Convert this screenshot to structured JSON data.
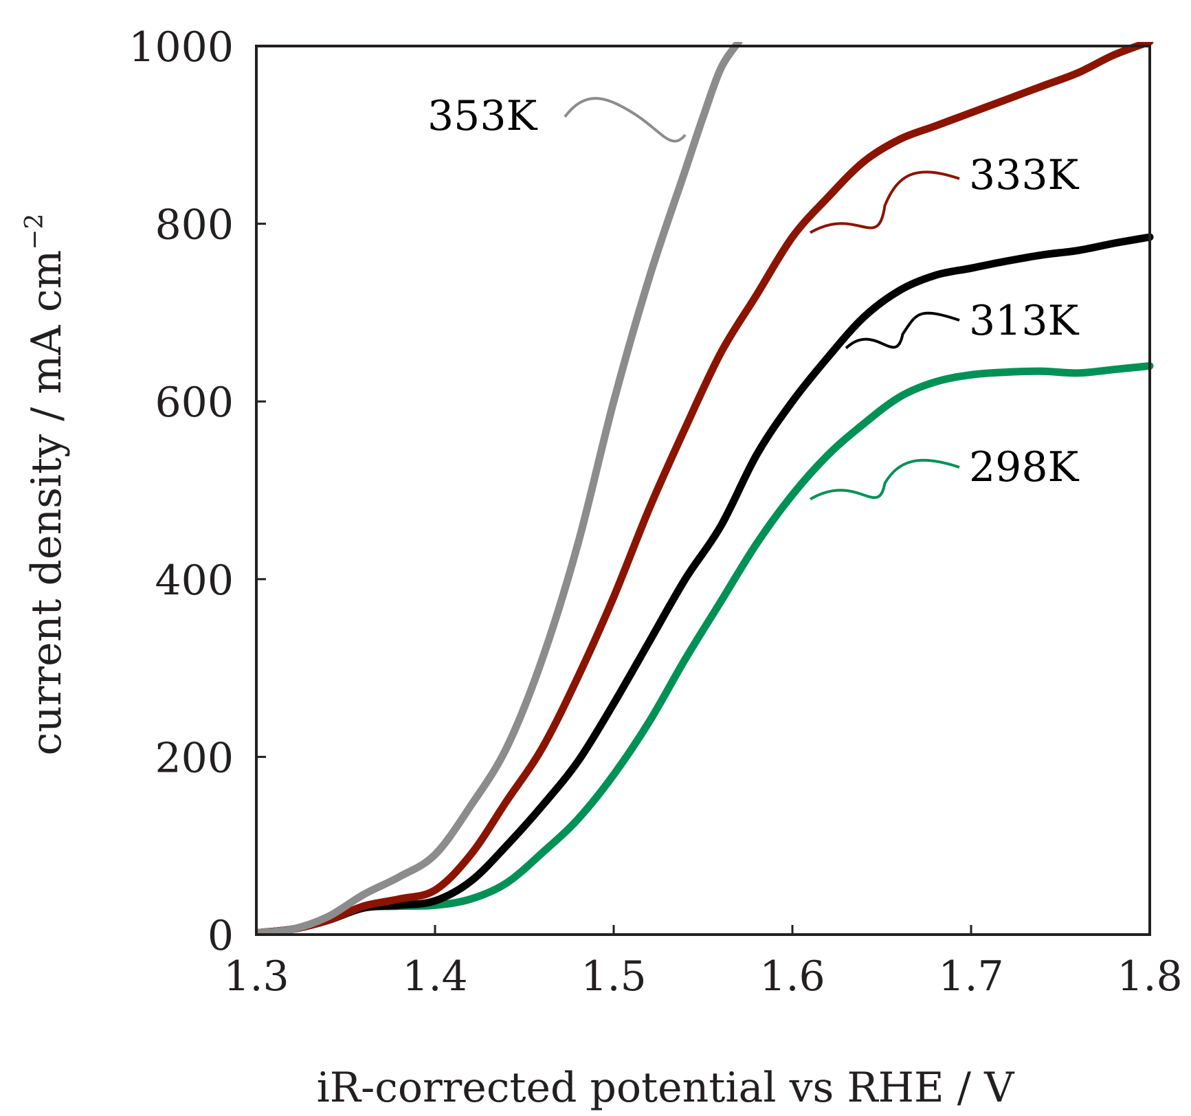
{
  "chart_data": {
    "type": "line",
    "title": "",
    "xlabel": "iR-corrected potential vs RHE / V",
    "ylabel_main": "current density / mA cm",
    "ylabel_sup": "−2",
    "xlim": [
      1.3,
      1.8
    ],
    "ylim": [
      0,
      1000
    ],
    "xticks": [
      1.3,
      1.4,
      1.5,
      1.6,
      1.7,
      1.8
    ],
    "xtick_labels": [
      "1.3",
      "1.4",
      "1.5",
      "1.6",
      "1.7",
      "1.8"
    ],
    "yticks": [
      0,
      200,
      400,
      600,
      800,
      1000
    ],
    "ytick_labels": [
      "0",
      "200",
      "400",
      "600",
      "800",
      "1000"
    ],
    "grid": false,
    "series": [
      {
        "name": "298K",
        "color": "#009156",
        "x": [
          1.3,
          1.32,
          1.34,
          1.36,
          1.38,
          1.4,
          1.42,
          1.44,
          1.46,
          1.48,
          1.5,
          1.52,
          1.54,
          1.56,
          1.58,
          1.6,
          1.62,
          1.64,
          1.66,
          1.68,
          1.7,
          1.72,
          1.74,
          1.76,
          1.78,
          1.8
        ],
        "values": [
          2,
          6,
          16,
          30,
          32,
          33,
          40,
          58,
          92,
          130,
          180,
          240,
          310,
          375,
          440,
          495,
          540,
          575,
          605,
          622,
          630,
          633,
          634,
          632,
          636,
          640
        ]
      },
      {
        "name": "313K",
        "color": "#000000",
        "x": [
          1.3,
          1.32,
          1.34,
          1.36,
          1.38,
          1.4,
          1.42,
          1.44,
          1.46,
          1.48,
          1.5,
          1.52,
          1.54,
          1.56,
          1.58,
          1.6,
          1.62,
          1.64,
          1.66,
          1.68,
          1.7,
          1.72,
          1.74,
          1.76,
          1.78,
          1.8
        ],
        "values": [
          2,
          6,
          16,
          30,
          33,
          38,
          60,
          100,
          145,
          195,
          260,
          330,
          400,
          460,
          540,
          600,
          650,
          695,
          725,
          742,
          750,
          758,
          765,
          770,
          778,
          785
        ]
      },
      {
        "name": "333K",
        "color": "#8b1400",
        "x": [
          1.3,
          1.32,
          1.34,
          1.36,
          1.38,
          1.4,
          1.42,
          1.44,
          1.46,
          1.48,
          1.5,
          1.52,
          1.54,
          1.56,
          1.58,
          1.6,
          1.62,
          1.64,
          1.66,
          1.68,
          1.7,
          1.72,
          1.74,
          1.76,
          1.78,
          1.8
        ],
        "values": [
          2,
          6,
          16,
          32,
          40,
          50,
          90,
          150,
          210,
          290,
          380,
          480,
          570,
          655,
          720,
          785,
          830,
          870,
          895,
          910,
          925,
          940,
          955,
          970,
          990,
          1005
        ]
      },
      {
        "name": "353K",
        "color": "#8c8c8c",
        "x": [
          1.3,
          1.32,
          1.34,
          1.36,
          1.38,
          1.4,
          1.42,
          1.44,
          1.46,
          1.48,
          1.5,
          1.52,
          1.54,
          1.55,
          1.56,
          1.57
        ],
        "values": [
          2,
          6,
          20,
          45,
          65,
          90,
          145,
          210,
          310,
          440,
          600,
          740,
          860,
          920,
          975,
          1005
        ]
      }
    ],
    "annotations": [
      {
        "text": "353K",
        "series": "353K",
        "x": 1.54,
        "y": 900
      },
      {
        "text": "333K",
        "series": "333K",
        "x": 1.61,
        "y": 790
      },
      {
        "text": "313K",
        "series": "313K",
        "x": 1.63,
        "y": 660
      },
      {
        "text": "298K",
        "series": "298K",
        "x": 1.61,
        "y": 490
      }
    ]
  }
}
